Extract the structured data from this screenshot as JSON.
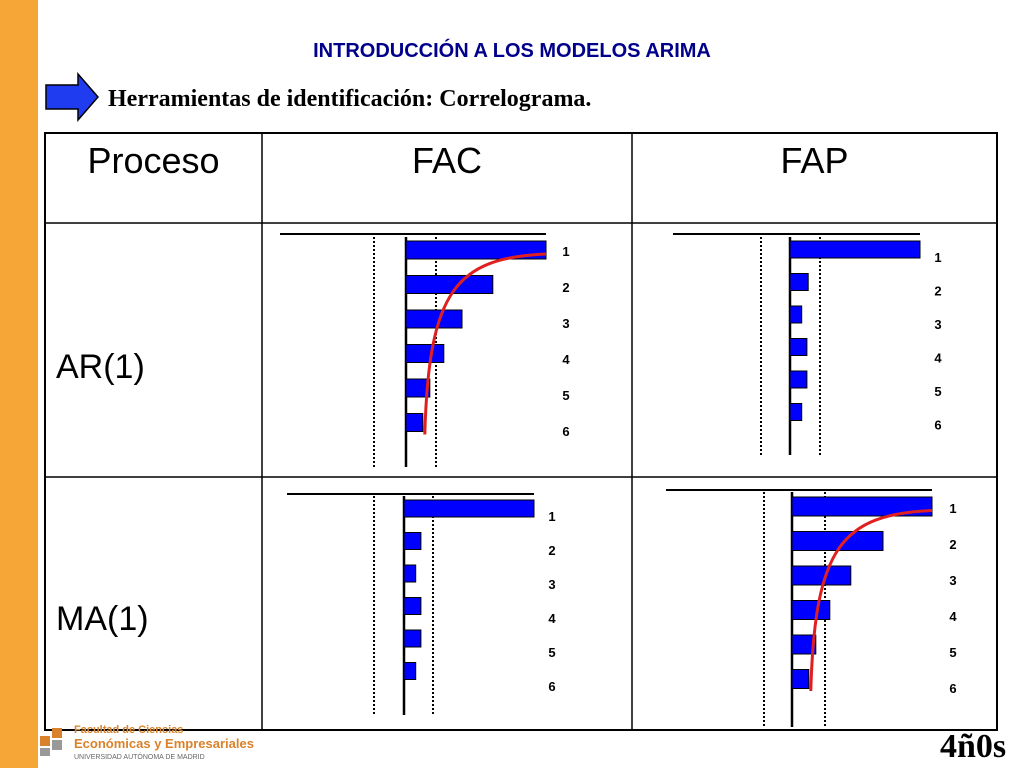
{
  "header": {
    "title": "INTRODUCCIÓN A LOS MODELOS ARIMA",
    "subtitle": "Herramientas de identificación: Correlograma."
  },
  "table": {
    "columns": [
      "Proceso",
      "FAC",
      "FAP"
    ],
    "rows": [
      "AR(1)",
      "MA(1)"
    ]
  },
  "lag_labels": [
    "1",
    "2",
    "3",
    "4",
    "5",
    "6"
  ],
  "chart_data": [
    {
      "type": "bar",
      "title": "",
      "process": "AR(1)",
      "function": "FAC",
      "categories": [
        "1",
        "2",
        "3",
        "4",
        "5",
        "6"
      ],
      "values": [
        1.0,
        0.62,
        0.4,
        0.27,
        0.17,
        0.12
      ],
      "decay_curve": true
    },
    {
      "type": "bar",
      "title": "",
      "process": "AR(1)",
      "function": "FAP",
      "categories": [
        "1",
        "2",
        "3",
        "4",
        "5",
        "6"
      ],
      "values": [
        1.0,
        0.14,
        0.09,
        0.13,
        0.13,
        0.09
      ],
      "decay_curve": false
    },
    {
      "type": "bar",
      "title": "",
      "process": "MA(1)",
      "function": "FAC",
      "categories": [
        "1",
        "2",
        "3",
        "4",
        "5",
        "6"
      ],
      "values": [
        1.0,
        0.13,
        0.09,
        0.13,
        0.13,
        0.09
      ],
      "decay_curve": false
    },
    {
      "type": "bar",
      "title": "",
      "process": "MA(1)",
      "function": "FAP",
      "categories": [
        "1",
        "2",
        "3",
        "4",
        "5",
        "6"
      ],
      "values": [
        1.0,
        0.65,
        0.42,
        0.27,
        0.17,
        0.12
      ],
      "decay_curve": true
    }
  ],
  "footer": {
    "logo_line1": "Facultad de Ciencias",
    "logo_line2": "Económicas y Empresariales",
    "logo_line3": "UNIVERSIDAD AUTÓNOMA DE MADRID",
    "brand": "4ñ0s"
  },
  "colors": {
    "stripe": "#f6a637",
    "title": "#00008b",
    "bars": "#0000ff",
    "curve": "#e02020",
    "arrow": "#1f3cf0"
  }
}
